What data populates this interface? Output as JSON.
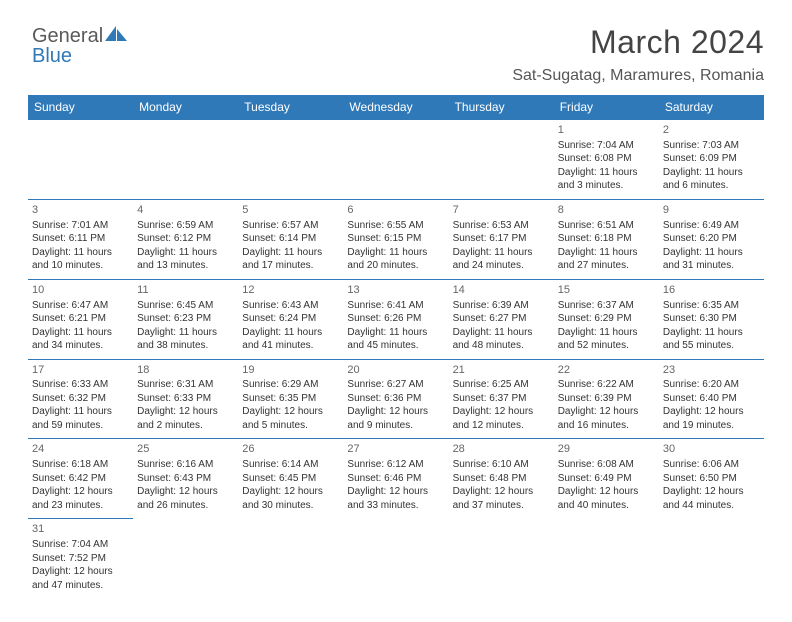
{
  "logo": {
    "text1": "General",
    "text2": "Blue"
  },
  "header": {
    "title": "March 2024",
    "location": "Sat-Sugatag, Maramures, Romania"
  },
  "colors": {
    "header_bg": "#2f79b9",
    "header_text": "#ffffff",
    "cell_border": "#2f79b9",
    "body_text": "#333333",
    "title_color": "#444444"
  },
  "weekdays": [
    "Sunday",
    "Monday",
    "Tuesday",
    "Wednesday",
    "Thursday",
    "Friday",
    "Saturday"
  ],
  "weeks": [
    [
      null,
      null,
      null,
      null,
      null,
      {
        "d": "1",
        "sr": "Sunrise: 7:04 AM",
        "ss": "Sunset: 6:08 PM",
        "dl": "Daylight: 11 hours and 3 minutes."
      },
      {
        "d": "2",
        "sr": "Sunrise: 7:03 AM",
        "ss": "Sunset: 6:09 PM",
        "dl": "Daylight: 11 hours and 6 minutes."
      }
    ],
    [
      {
        "d": "3",
        "sr": "Sunrise: 7:01 AM",
        "ss": "Sunset: 6:11 PM",
        "dl": "Daylight: 11 hours and 10 minutes."
      },
      {
        "d": "4",
        "sr": "Sunrise: 6:59 AM",
        "ss": "Sunset: 6:12 PM",
        "dl": "Daylight: 11 hours and 13 minutes."
      },
      {
        "d": "5",
        "sr": "Sunrise: 6:57 AM",
        "ss": "Sunset: 6:14 PM",
        "dl": "Daylight: 11 hours and 17 minutes."
      },
      {
        "d": "6",
        "sr": "Sunrise: 6:55 AM",
        "ss": "Sunset: 6:15 PM",
        "dl": "Daylight: 11 hours and 20 minutes."
      },
      {
        "d": "7",
        "sr": "Sunrise: 6:53 AM",
        "ss": "Sunset: 6:17 PM",
        "dl": "Daylight: 11 hours and 24 minutes."
      },
      {
        "d": "8",
        "sr": "Sunrise: 6:51 AM",
        "ss": "Sunset: 6:18 PM",
        "dl": "Daylight: 11 hours and 27 minutes."
      },
      {
        "d": "9",
        "sr": "Sunrise: 6:49 AM",
        "ss": "Sunset: 6:20 PM",
        "dl": "Daylight: 11 hours and 31 minutes."
      }
    ],
    [
      {
        "d": "10",
        "sr": "Sunrise: 6:47 AM",
        "ss": "Sunset: 6:21 PM",
        "dl": "Daylight: 11 hours and 34 minutes."
      },
      {
        "d": "11",
        "sr": "Sunrise: 6:45 AM",
        "ss": "Sunset: 6:23 PM",
        "dl": "Daylight: 11 hours and 38 minutes."
      },
      {
        "d": "12",
        "sr": "Sunrise: 6:43 AM",
        "ss": "Sunset: 6:24 PM",
        "dl": "Daylight: 11 hours and 41 minutes."
      },
      {
        "d": "13",
        "sr": "Sunrise: 6:41 AM",
        "ss": "Sunset: 6:26 PM",
        "dl": "Daylight: 11 hours and 45 minutes."
      },
      {
        "d": "14",
        "sr": "Sunrise: 6:39 AM",
        "ss": "Sunset: 6:27 PM",
        "dl": "Daylight: 11 hours and 48 minutes."
      },
      {
        "d": "15",
        "sr": "Sunrise: 6:37 AM",
        "ss": "Sunset: 6:29 PM",
        "dl": "Daylight: 11 hours and 52 minutes."
      },
      {
        "d": "16",
        "sr": "Sunrise: 6:35 AM",
        "ss": "Sunset: 6:30 PM",
        "dl": "Daylight: 11 hours and 55 minutes."
      }
    ],
    [
      {
        "d": "17",
        "sr": "Sunrise: 6:33 AM",
        "ss": "Sunset: 6:32 PM",
        "dl": "Daylight: 11 hours and 59 minutes."
      },
      {
        "d": "18",
        "sr": "Sunrise: 6:31 AM",
        "ss": "Sunset: 6:33 PM",
        "dl": "Daylight: 12 hours and 2 minutes."
      },
      {
        "d": "19",
        "sr": "Sunrise: 6:29 AM",
        "ss": "Sunset: 6:35 PM",
        "dl": "Daylight: 12 hours and 5 minutes."
      },
      {
        "d": "20",
        "sr": "Sunrise: 6:27 AM",
        "ss": "Sunset: 6:36 PM",
        "dl": "Daylight: 12 hours and 9 minutes."
      },
      {
        "d": "21",
        "sr": "Sunrise: 6:25 AM",
        "ss": "Sunset: 6:37 PM",
        "dl": "Daylight: 12 hours and 12 minutes."
      },
      {
        "d": "22",
        "sr": "Sunrise: 6:22 AM",
        "ss": "Sunset: 6:39 PM",
        "dl": "Daylight: 12 hours and 16 minutes."
      },
      {
        "d": "23",
        "sr": "Sunrise: 6:20 AM",
        "ss": "Sunset: 6:40 PM",
        "dl": "Daylight: 12 hours and 19 minutes."
      }
    ],
    [
      {
        "d": "24",
        "sr": "Sunrise: 6:18 AM",
        "ss": "Sunset: 6:42 PM",
        "dl": "Daylight: 12 hours and 23 minutes."
      },
      {
        "d": "25",
        "sr": "Sunrise: 6:16 AM",
        "ss": "Sunset: 6:43 PM",
        "dl": "Daylight: 12 hours and 26 minutes."
      },
      {
        "d": "26",
        "sr": "Sunrise: 6:14 AM",
        "ss": "Sunset: 6:45 PM",
        "dl": "Daylight: 12 hours and 30 minutes."
      },
      {
        "d": "27",
        "sr": "Sunrise: 6:12 AM",
        "ss": "Sunset: 6:46 PM",
        "dl": "Daylight: 12 hours and 33 minutes."
      },
      {
        "d": "28",
        "sr": "Sunrise: 6:10 AM",
        "ss": "Sunset: 6:48 PM",
        "dl": "Daylight: 12 hours and 37 minutes."
      },
      {
        "d": "29",
        "sr": "Sunrise: 6:08 AM",
        "ss": "Sunset: 6:49 PM",
        "dl": "Daylight: 12 hours and 40 minutes."
      },
      {
        "d": "30",
        "sr": "Sunrise: 6:06 AM",
        "ss": "Sunset: 6:50 PM",
        "dl": "Daylight: 12 hours and 44 minutes."
      }
    ],
    [
      {
        "d": "31",
        "sr": "Sunrise: 7:04 AM",
        "ss": "Sunset: 7:52 PM",
        "dl": "Daylight: 12 hours and 47 minutes."
      },
      null,
      null,
      null,
      null,
      null,
      null
    ]
  ]
}
